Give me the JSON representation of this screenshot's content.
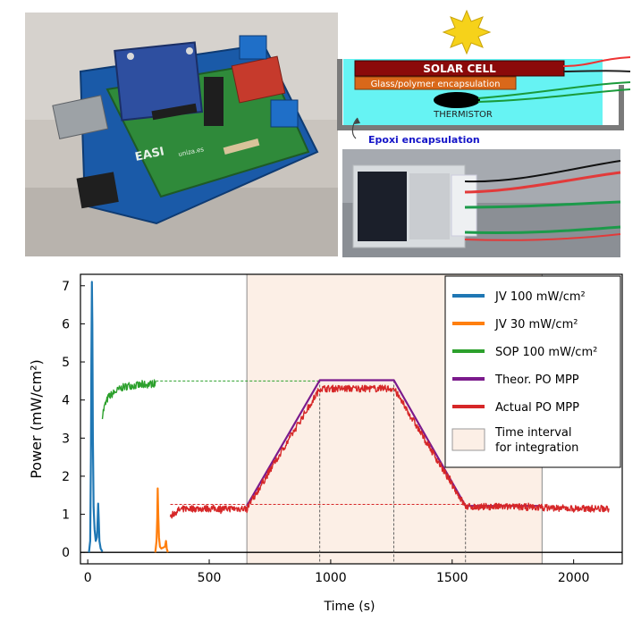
{
  "photos": {
    "board_label_1": "EASI",
    "board_label_2": "uniza.es"
  },
  "schematic": {
    "solar_cell_label": "SOLAR CELL",
    "glass_label": "Glass/polymer encapsulation",
    "thermistor_label": "THERMISTOR",
    "epoxy_label": "Epoxi encapsulation",
    "colors": {
      "water": "#66f3f3",
      "cell": "#8b0a0a",
      "glass": "#d9681a",
      "epoxy_text": "#1515c8",
      "sun": "#f6d21a"
    }
  },
  "chart_data": {
    "type": "line",
    "xlabel": "Time (s)",
    "ylabel": "Power (mW/cm²)",
    "xlim": [
      -30,
      2200
    ],
    "ylim": [
      -0.3,
      7.3
    ],
    "xticks": [
      0,
      500,
      1000,
      1500,
      2000
    ],
    "yticks": [
      0,
      1,
      2,
      3,
      4,
      5,
      6,
      7
    ],
    "legend_position": "right",
    "integration_interval": [
      655,
      1870
    ],
    "integration_label": [
      "Time interval",
      "for integration"
    ],
    "series": [
      {
        "name": "JV 100 mW/cm²",
        "color": "#1f77b4",
        "points": [
          [
            5,
            0
          ],
          [
            10,
            0.3
          ],
          [
            13,
            2.5
          ],
          [
            15,
            5.0
          ],
          [
            17,
            7.1
          ],
          [
            19,
            6.0
          ],
          [
            21,
            3.0
          ],
          [
            24,
            1.2
          ],
          [
            28,
            0.6
          ],
          [
            33,
            0.3
          ],
          [
            38,
            0.4
          ],
          [
            41,
            0.9
          ],
          [
            43,
            1.28
          ],
          [
            45,
            0.9
          ],
          [
            48,
            0.3
          ],
          [
            53,
            0.1
          ],
          [
            60,
            0.02
          ]
        ]
      },
      {
        "name": "JV 30 mW/cm²",
        "color": "#ff7f0e",
        "points": [
          [
            278,
            0
          ],
          [
            283,
            0.3
          ],
          [
            286,
            0.9
          ],
          [
            288,
            1.68
          ],
          [
            290,
            1.0
          ],
          [
            293,
            0.4
          ],
          [
            297,
            0.15
          ],
          [
            303,
            0.1
          ],
          [
            318,
            0.15
          ],
          [
            322,
            0.3
          ],
          [
            325,
            0.1
          ],
          [
            330,
            0
          ]
        ]
      },
      {
        "name": "SOP 100 mW/cm²",
        "color": "#2ca02c",
        "noise": 0.1,
        "points": [
          [
            60,
            3.6
          ],
          [
            70,
            3.85
          ],
          [
            85,
            4.08
          ],
          [
            110,
            4.2
          ],
          [
            140,
            4.32
          ],
          [
            170,
            4.38
          ],
          [
            200,
            4.38
          ],
          [
            230,
            4.4
          ],
          [
            260,
            4.42
          ],
          [
            280,
            4.45
          ]
        ]
      },
      {
        "name": "Theor. PO MPP",
        "color": "#7b1a8c",
        "points": [
          [
            655,
            1.22
          ],
          [
            955,
            4.52
          ],
          [
            1260,
            4.52
          ],
          [
            1555,
            1.22
          ],
          [
            1870,
            1.22
          ]
        ]
      },
      {
        "name": "Actual PO MPP",
        "color": "#d62728",
        "noise": 0.09,
        "points": [
          [
            340,
            0.95
          ],
          [
            350,
            1.0
          ],
          [
            370,
            1.1
          ],
          [
            400,
            1.15
          ],
          [
            500,
            1.15
          ],
          [
            655,
            1.15
          ],
          [
            955,
            4.3
          ],
          [
            1260,
            4.3
          ],
          [
            1555,
            1.2
          ],
          [
            1700,
            1.2
          ],
          [
            1870,
            1.18
          ],
          [
            2000,
            1.15
          ],
          [
            2145,
            1.15
          ]
        ]
      }
    ],
    "guide_lines": [
      {
        "color": "#2ca02c",
        "points": [
          [
            280,
            4.5
          ],
          [
            955,
            4.5
          ]
        ]
      },
      {
        "color": "#d62728",
        "points": [
          [
            340,
            1.26
          ],
          [
            1555,
            1.26
          ]
        ]
      }
    ],
    "vertical_dashes": [
      {
        "x": 955,
        "y": 4.52
      },
      {
        "x": 1260,
        "y": 4.52
      },
      {
        "x": 1555,
        "y": 1.22
      }
    ]
  }
}
